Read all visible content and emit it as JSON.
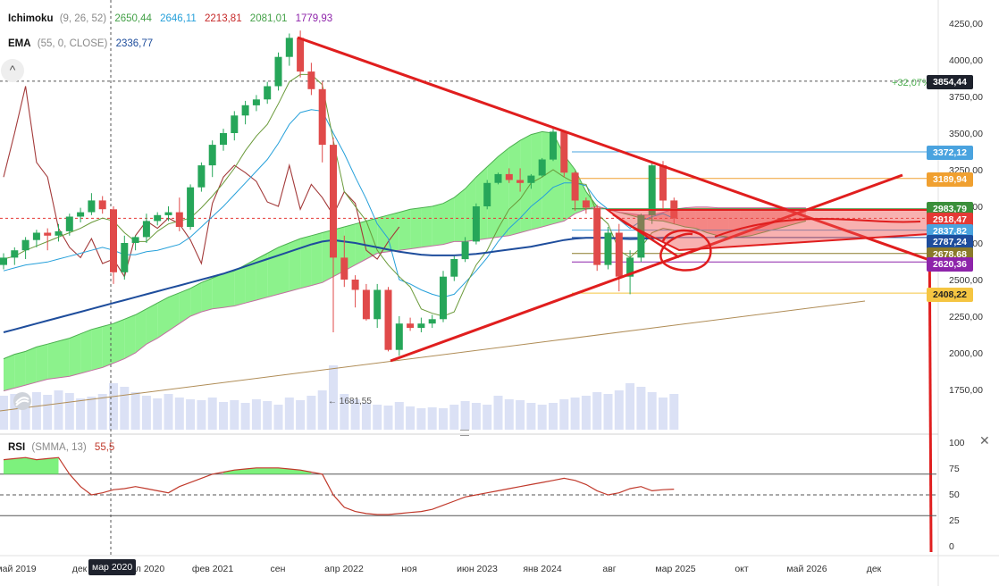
{
  "legend": {
    "ichimoku": {
      "name": "Ichimoku",
      "params": "(9, 26, 52)",
      "values": [
        "2650,44",
        "2646,11",
        "2213,81",
        "2081,01",
        "1779,93"
      ],
      "colors": [
        "#43a047",
        "#26a0da",
        "#c62828",
        "#43a047",
        "#8e24aa"
      ]
    },
    "ema": {
      "name": "EMA",
      "params": "(55, 0, CLOSE)",
      "value": "2336,77",
      "color": "#1e4d9c"
    },
    "rsi": {
      "name": "RSI",
      "params": "(SMMA, 13)",
      "value": "55,5",
      "color": "#c0392b"
    }
  },
  "price_axis": {
    "labels": [
      "4250,00",
      "4000,00",
      "3750,00",
      "3500,00",
      "3250,00",
      "3000,00",
      "2750,00",
      "2500,00",
      "2250,00",
      "2000,00",
      "1750,00"
    ],
    "rsi_labels": [
      "100",
      "75",
      "50",
      "25",
      "0"
    ]
  },
  "price_tags": [
    {
      "label": "3854,44",
      "color": "#1e222d",
      "value": 3854.44
    },
    {
      "label": "3372,12",
      "color": "#4aa3df",
      "value": 3372.12
    },
    {
      "label": "3189,94",
      "color": "#f0a030",
      "value": 3189.94
    },
    {
      "label": "2983,79",
      "color": "#3a8f3a",
      "value": 2983.79
    },
    {
      "label": "2918,47",
      "color": "#e53935",
      "value": 2918.47
    },
    {
      "label": "2837,82",
      "color": "#4aa3df",
      "value": 2837.82
    },
    {
      "label": "2787,24",
      "color": "#1e4d9c",
      "value": 2787.24
    },
    {
      "label": "2678,68",
      "color": "#8a7a2a",
      "value": 2678.68
    },
    {
      "label": "2620,36",
      "color": "#8e24aa",
      "value": 2620.36
    },
    {
      "label": "2408,22",
      "color": "#f5c542",
      "value": 2408.22
    }
  ],
  "annotations": {
    "percent": "+32,07%",
    "volume_low": "← 1681,55",
    "current_date": "мар 2020",
    "round_button": "^",
    "close": "✕"
  },
  "time_axis": [
    "май 2019",
    "дек",
    "л 2020",
    "фев 2021",
    "сен",
    "апр 2022",
    "ноя",
    "июн 2023",
    "янв 2024",
    "авг",
    "мар 2025",
    "окт",
    "май 2026",
    "дек"
  ],
  "chart_data": {
    "type": "candlestick",
    "interval": "monthly",
    "ylim": [
      1500,
      4350
    ],
    "candles": [
      [
        2600,
        2680,
        2570,
        2650
      ],
      [
        2650,
        2720,
        2600,
        2700
      ],
      [
        2700,
        2790,
        2640,
        2770
      ],
      [
        2770,
        2840,
        2720,
        2820
      ],
      [
        2820,
        2850,
        2700,
        2800
      ],
      [
        2800,
        2880,
        2760,
        2830
      ],
      [
        2830,
        2950,
        2800,
        2930
      ],
      [
        2930,
        2990,
        2890,
        2960
      ],
      [
        2960,
        3090,
        2940,
        3040
      ],
      [
        3040,
        3070,
        2950,
        2980
      ],
      [
        2980,
        3000,
        2470,
        2550
      ],
      [
        2550,
        2800,
        2500,
        2750
      ],
      [
        2750,
        2800,
        2700,
        2790
      ],
      [
        2790,
        2950,
        2750,
        2900
      ],
      [
        2900,
        2960,
        2870,
        2940
      ],
      [
        2940,
        3000,
        2900,
        2960
      ],
      [
        2960,
        3060,
        2830,
        2860
      ],
      [
        2860,
        3150,
        2840,
        3130
      ],
      [
        3130,
        3300,
        3100,
        3280
      ],
      [
        3280,
        3450,
        3200,
        3420
      ],
      [
        3420,
        3530,
        3380,
        3500
      ],
      [
        3500,
        3650,
        3450,
        3620
      ],
      [
        3620,
        3720,
        3560,
        3690
      ],
      [
        3690,
        3760,
        3650,
        3730
      ],
      [
        3730,
        3850,
        3700,
        3820
      ],
      [
        3820,
        4050,
        3790,
        4020
      ],
      [
        4020,
        4180,
        3960,
        4150
      ],
      [
        4150,
        4200,
        3880,
        3920
      ],
      [
        3920,
        3980,
        3760,
        3800
      ],
      [
        3800,
        3850,
        3300,
        3420
      ],
      [
        3420,
        3470,
        2140,
        2650
      ],
      [
        2650,
        2800,
        2450,
        2500
      ],
      [
        2500,
        2530,
        2310,
        2430
      ],
      [
        2430,
        2470,
        2220,
        2230
      ],
      [
        2230,
        2470,
        2170,
        2430
      ],
      [
        2430,
        2450,
        2010,
        2020
      ],
      [
        2020,
        2250,
        1980,
        2200
      ],
      [
        2200,
        2240,
        2150,
        2170
      ],
      [
        2170,
        2240,
        2140,
        2200
      ],
      [
        2200,
        2260,
        2170,
        2230
      ],
      [
        2230,
        2560,
        2210,
        2520
      ],
      [
        2520,
        2660,
        2490,
        2640
      ],
      [
        2640,
        2790,
        2620,
        2760
      ],
      [
        2760,
        3020,
        2740,
        3000
      ],
      [
        3000,
        3180,
        2980,
        3160
      ],
      [
        3160,
        3230,
        3150,
        3220
      ],
      [
        3220,
        3260,
        3160,
        3180
      ],
      [
        3180,
        3260,
        3100,
        3160
      ],
      [
        3160,
        3220,
        3120,
        3210
      ],
      [
        3210,
        3330,
        3200,
        3320
      ],
      [
        3320,
        3530,
        3310,
        3510
      ],
      [
        3510,
        3520,
        3200,
        3230
      ],
      [
        3230,
        3240,
        2970,
        3040
      ],
      [
        3040,
        3060,
        2950,
        2990
      ],
      [
        2990,
        3010,
        2560,
        2600
      ],
      [
        2600,
        2860,
        2570,
        2820
      ],
      [
        2820,
        2880,
        2420,
        2520
      ],
      [
        2520,
        2700,
        2400,
        2650
      ],
      [
        2650,
        2950,
        2620,
        2940
      ],
      [
        2940,
        3300,
        2880,
        3280
      ],
      [
        3280,
        3310,
        2980,
        3040
      ],
      [
        3040,
        3060,
        2880,
        2918
      ]
    ],
    "ema55": [
      2140,
      2160,
      2180,
      2200,
      2220,
      2240,
      2260,
      2280,
      2300,
      2320,
      2340,
      2360,
      2380,
      2400,
      2420,
      2440,
      2460,
      2480,
      2500,
      2520,
      2540,
      2565,
      2590,
      2615,
      2640,
      2665,
      2690,
      2715,
      2740,
      2760,
      2770,
      2760,
      2750,
      2735,
      2720,
      2705,
      2690,
      2680,
      2670,
      2665,
      2665,
      2665,
      2670,
      2675,
      2685,
      2695,
      2705,
      2715,
      2725,
      2740,
      2755,
      2770,
      2780,
      2785,
      2785,
      2785,
      2780,
      2777,
      2778,
      2782,
      2785,
      2787
    ],
    "tenkan": [
      2640,
      2660,
      2700,
      2730,
      2760,
      2790,
      2820,
      2850,
      2890,
      2920,
      2900,
      2820,
      2760,
      2760,
      2830,
      2880,
      2900,
      2920,
      2990,
      3070,
      3160,
      3260,
      3380,
      3480,
      3560,
      3700,
      3850,
      3900,
      3900,
      3830,
      3450,
      3100,
      3000,
      2900,
      2700,
      2600,
      2520,
      2450,
      2300,
      2270,
      2250,
      2280,
      2450,
      2600,
      2700,
      2850,
      2980,
      3050,
      3160,
      3200,
      3250,
      3200,
      3160,
      3150,
      2950,
      2880,
      2700,
      2650,
      2720,
      2820,
      2850,
      2837
    ],
    "kijun": [
      2560,
      2580,
      2600,
      2610,
      2620,
      2640,
      2660,
      2680,
      2700,
      2720,
      2700,
      2670,
      2670,
      2690,
      2700,
      2720,
      2740,
      2790,
      2860,
      2930,
      3000,
      3080,
      3160,
      3240,
      3320,
      3430,
      3560,
      3640,
      3660,
      3650,
      3500,
      3360,
      3200,
      3050,
      2880,
      2780,
      2500,
      2470,
      2430,
      2400,
      2380,
      2400,
      2480,
      2560,
      2650,
      2760,
      2850,
      2920,
      3000,
      3060,
      3130,
      3160,
      3160,
      3140,
      3040,
      2980,
      2910,
      2850,
      2900,
      2930,
      2950,
      2918
    ],
    "chikou": [
      3200,
      3500,
      3820,
      3300,
      3200,
      2850,
      2720,
      2650,
      2780,
      2610,
      2640,
      2520,
      2800,
      2900,
      2850,
      2920,
      2880,
      2770,
      2610,
      3020,
      3200,
      3280,
      3230,
      3170,
      3030,
      3000,
      3280,
      2980,
      3150,
      3060,
      2940,
      3100,
      3020,
      2700,
      2640,
      2760,
      2860
    ],
    "cloud_a": [
      1960,
      1990,
      2010,
      2040,
      2060,
      2080,
      2100,
      2130,
      2160,
      2180,
      2200,
      2230,
      2260,
      2300,
      2340,
      2380,
      2410,
      2440,
      2480,
      2510,
      2540,
      2560,
      2600,
      2640,
      2680,
      2720,
      2750,
      2780,
      2800,
      2820,
      2840,
      2860,
      2880,
      2900,
      2920,
      2940,
      2960,
      2980,
      2990,
      3000,
      3020,
      3060,
      3120,
      3200,
      3270,
      3340,
      3400,
      3450,
      3490,
      3510,
      3500,
      3350,
      3250,
      3100,
      3000,
      2980,
      2960,
      2940,
      2920,
      2905,
      2900,
      2880,
      2860,
      2850,
      2820,
      2800,
      2790,
      2790,
      2800,
      2820,
      2840,
      2860,
      2880,
      2900
    ],
    "cloud_b": [
      1740,
      1760,
      1780,
      1800,
      1820,
      1830,
      1840,
      1860,
      1880,
      1900,
      1930,
      1960,
      2000,
      2060,
      2100,
      2150,
      2200,
      2250,
      2280,
      2300,
      2310,
      2320,
      2340,
      2360,
      2380,
      2400,
      2420,
      2440,
      2460,
      2480,
      2520,
      2560,
      2600,
      2640,
      2680,
      2690,
      2700,
      2710,
      2720,
      2730,
      2740,
      2760,
      2760,
      2770,
      2780,
      2790,
      2800,
      2820,
      2840,
      2860,
      2880,
      2900,
      2950,
      2980,
      3000,
      2980,
      2960,
      2950,
      2940,
      2940,
      2960,
      2980,
      2990,
      2995,
      2995,
      2990,
      2990,
      2990,
      2990,
      2990,
      2990,
      2990,
      2990,
      2990
    ],
    "volume": [
      38,
      40,
      36,
      42,
      39,
      44,
      41,
      35,
      37,
      40,
      52,
      48,
      42,
      38,
      35,
      40,
      36,
      34,
      33,
      36,
      31,
      33,
      30,
      34,
      32,
      28,
      36,
      33,
      38,
      44,
      72,
      40,
      34,
      30,
      28,
      27,
      31,
      26,
      24,
      25,
      24,
      28,
      32,
      30,
      28,
      38,
      34,
      33,
      30,
      28,
      30,
      34,
      36,
      38,
      42,
      40,
      44,
      52,
      48,
      42,
      36,
      40
    ],
    "rsi": [
      84,
      85,
      86,
      84,
      85,
      86,
      70,
      58,
      50,
      52,
      55,
      56,
      58,
      56,
      54,
      52,
      58,
      62,
      66,
      70,
      72,
      74,
      75,
      76,
      76,
      76,
      75,
      74,
      72,
      70,
      50,
      38,
      34,
      32,
      31,
      31,
      32,
      33,
      34,
      36,
      40,
      44,
      48,
      50,
      52,
      54,
      56,
      58,
      60,
      62,
      64,
      66,
      64,
      60,
      54,
      50,
      52,
      56,
      58,
      54,
      55,
      55.5
    ],
    "rsi_levels": [
      70,
      50,
      30
    ],
    "levels": [
      3854.44,
      3372.12,
      3189.94,
      2983.79,
      2918.47,
      2837.82,
      2787.24,
      2678.68,
      2620.36,
      2408.22
    ],
    "drawings": {
      "triangle_upper": [
        [
          4160,
          0
        ],
        [
          2620,
          1
        ]
      ],
      "triangle_lower": [
        [
          1960,
          0
        ],
        [
          3290,
          1
        ]
      ]
    }
  }
}
